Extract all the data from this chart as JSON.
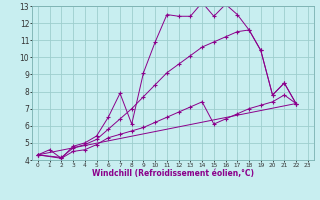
{
  "title": "",
  "xlabel": "Windchill (Refroidissement éolien,°C)",
  "ylabel": "",
  "bg_color": "#c8eef0",
  "line_color": "#8b008b",
  "grid_color": "#9ecece",
  "xlim": [
    -0.5,
    23.5
  ],
  "ylim": [
    4,
    13
  ],
  "xticks": [
    0,
    1,
    2,
    3,
    4,
    5,
    6,
    7,
    8,
    9,
    10,
    11,
    12,
    13,
    14,
    15,
    16,
    17,
    18,
    19,
    20,
    21,
    22,
    23
  ],
  "yticks": [
    4,
    5,
    6,
    7,
    8,
    9,
    10,
    11,
    12,
    13
  ],
  "series": [
    {
      "x": [
        0,
        1,
        2,
        3,
        4,
        5,
        6,
        7,
        8,
        9,
        10,
        11,
        12,
        13,
        14,
        15,
        16,
        17,
        18,
        19,
        20,
        21,
        22
      ],
      "y": [
        4.3,
        4.6,
        4.1,
        4.8,
        5.0,
        5.4,
        6.5,
        7.9,
        6.1,
        9.1,
        10.9,
        12.5,
        12.4,
        12.4,
        13.2,
        12.4,
        13.1,
        12.5,
        11.6,
        10.4,
        7.8,
        8.5,
        7.3
      ],
      "marker": true
    },
    {
      "x": [
        0,
        2,
        3,
        4,
        5,
        6,
        7,
        8,
        9,
        10,
        11,
        12,
        13,
        14,
        15,
        16,
        17,
        18,
        19,
        20,
        21,
        22
      ],
      "y": [
        4.3,
        4.15,
        4.7,
        4.9,
        5.2,
        5.8,
        6.4,
        7.0,
        7.7,
        8.4,
        9.1,
        9.6,
        10.1,
        10.6,
        10.9,
        11.2,
        11.5,
        11.6,
        10.4,
        7.8,
        8.5,
        7.3
      ],
      "marker": true
    },
    {
      "x": [
        0,
        2,
        3,
        4,
        5,
        6,
        7,
        8,
        9,
        10,
        11,
        12,
        13,
        14,
        15,
        16,
        17,
        18,
        19,
        20,
        21,
        22
      ],
      "y": [
        4.3,
        4.1,
        4.5,
        4.6,
        4.9,
        5.3,
        5.5,
        5.7,
        5.9,
        6.2,
        6.5,
        6.8,
        7.1,
        7.4,
        6.1,
        6.4,
        6.7,
        7.0,
        7.2,
        7.4,
        7.8,
        7.3
      ],
      "marker": true
    },
    {
      "x": [
        0,
        22
      ],
      "y": [
        4.3,
        7.3
      ],
      "marker": false
    }
  ]
}
